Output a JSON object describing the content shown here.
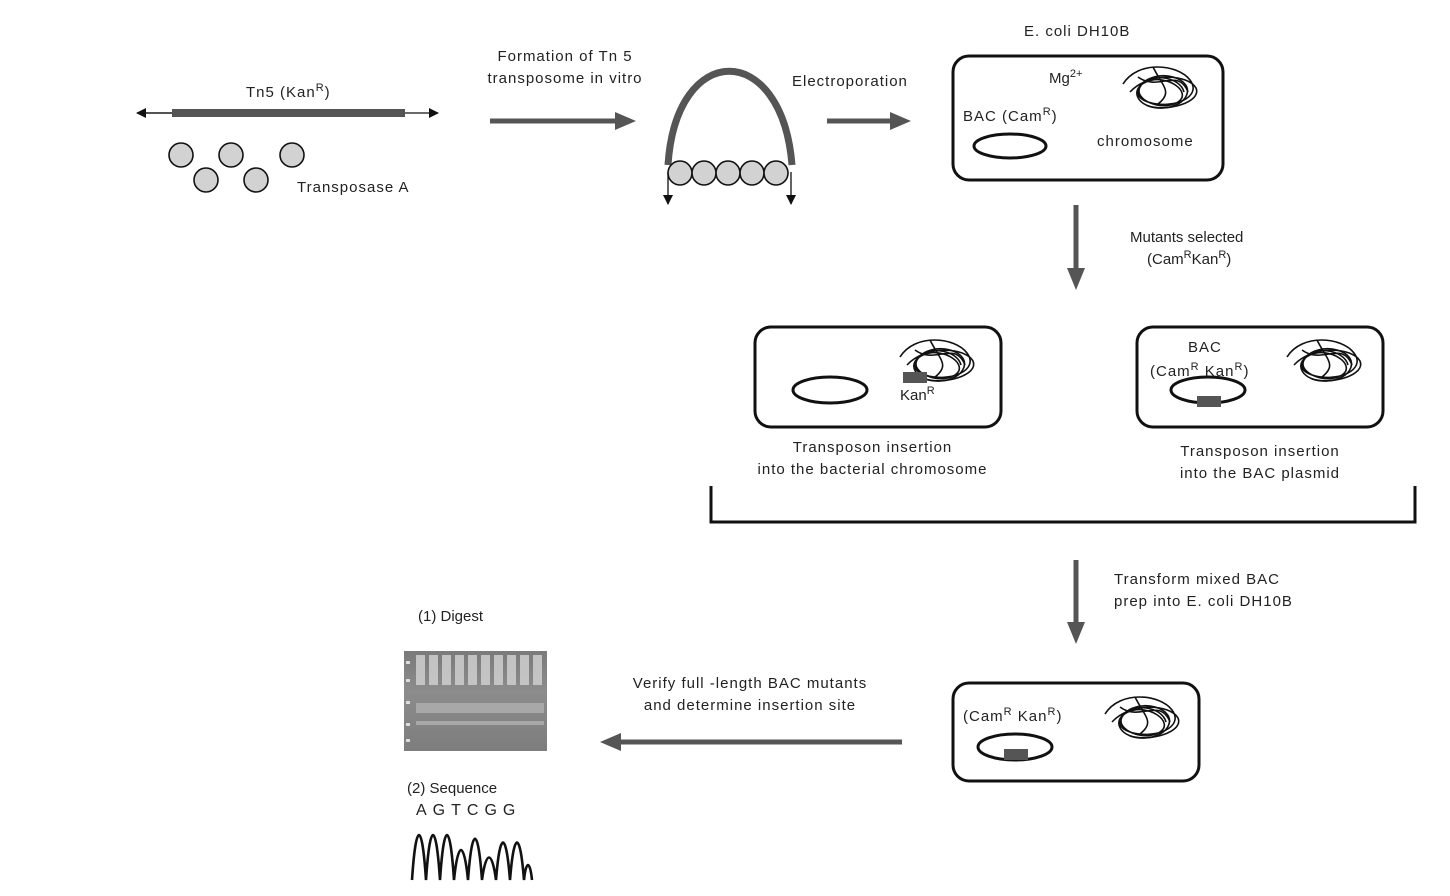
{
  "labels": {
    "tn5": "Tn5 (Kan",
    "tn5_sup": "R",
    "tn5_close": ")",
    "transposase": "Transposase A",
    "formation_1": "Formation of Tn 5",
    "formation_2": "transposome in vitro",
    "electroporation": "Electroporation",
    "ecoli_top": "E. coli DH10B",
    "mg": "Mg",
    "mg_sup": "2+",
    "bac_cam": "BAC (Cam",
    "bac_cam_sup": "R",
    "bac_cam_close": ")",
    "chromosome": "chromosome",
    "mutants_1": "Mutants selected",
    "mutants_2a": "(Cam",
    "mutants_2b": "Kan",
    "sup_r": "R",
    "close_paren": ")",
    "kan": "Kan",
    "bac2": "BAC",
    "bac2_b": "(Cam",
    "bac2_c": "Kan",
    "ins_chrom_1": "Transposon insertion",
    "ins_chrom_2": "into the bacterial chromosome",
    "ins_bac_1": "Transposon insertion",
    "ins_bac_2": "into the BAC plasmid",
    "transform_1": "Transform mixed BAC",
    "transform_2": "prep into E. coli DH10B",
    "final_a": "(Cam",
    "final_b": "Kan",
    "verify_1": "Verify full -length BAC mutants",
    "verify_2": "and determine insertion site",
    "digest": "(1) Digest",
    "sequence": "(2) Sequence",
    "bases": "AGTCGG"
  },
  "colors": {
    "arrow": "#555555",
    "outline": "#111111",
    "bead_fill": "#d2d2d2",
    "insert": "#555555"
  }
}
